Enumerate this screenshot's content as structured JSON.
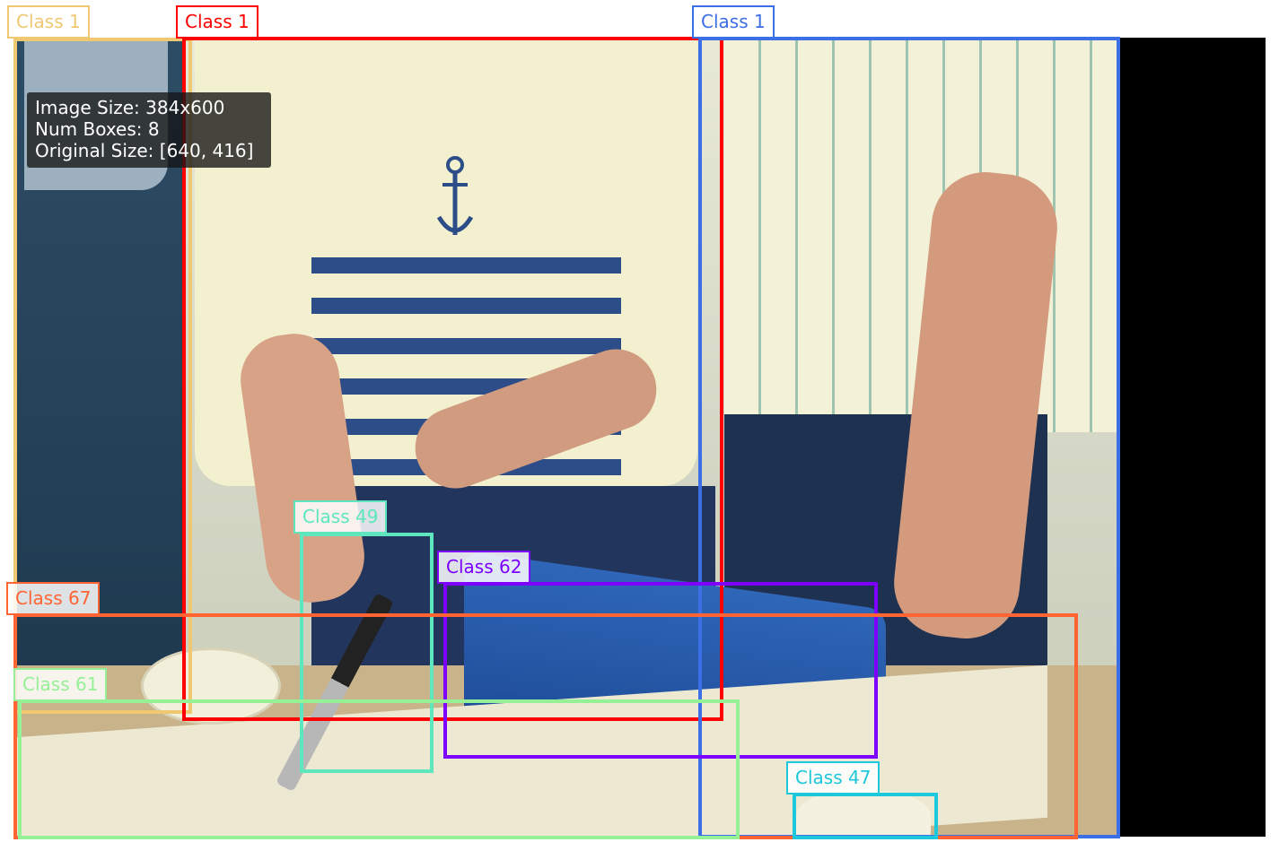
{
  "info": {
    "image_size": "Image Size: 384x600",
    "num_boxes": "Num Boxes: 8",
    "original_size": "Original Size: [640, 416]"
  },
  "boxes": [
    {
      "label": "Class 1",
      "color": "#f0c872",
      "class_id": 1
    },
    {
      "label": "Class 1",
      "color": "#ff0000",
      "class_id": 1
    },
    {
      "label": "Class 1",
      "color": "#3c6ee6",
      "class_id": 1
    },
    {
      "label": "Class 49",
      "color": "#5ee6be",
      "class_id": 49
    },
    {
      "label": "Class 62",
      "color": "#7d00ff",
      "class_id": 62
    },
    {
      "label": "Class 67",
      "color": "#ff6432",
      "class_id": 67
    },
    {
      "label": "Class 61",
      "color": "#96f096",
      "class_id": 61
    },
    {
      "label": "Class 47",
      "color": "#1ec8dc",
      "class_id": 47
    }
  ]
}
